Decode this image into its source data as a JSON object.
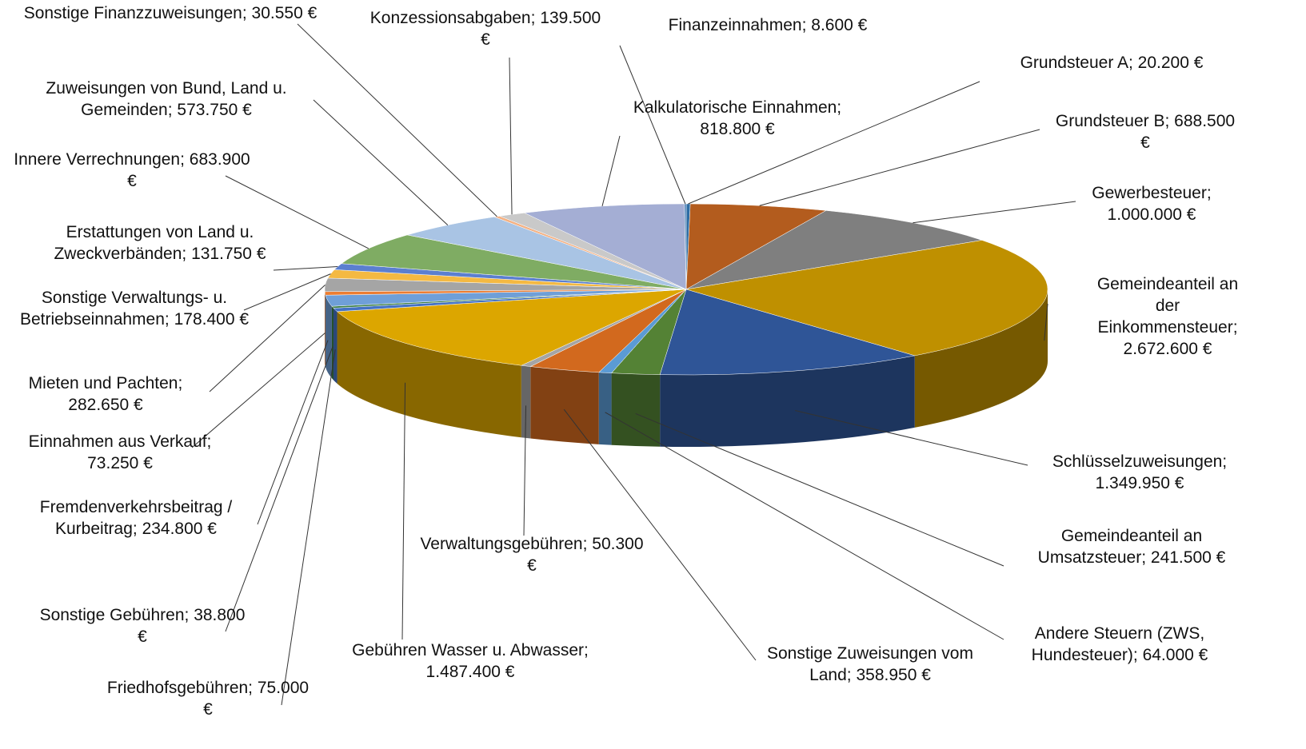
{
  "chart_data": {
    "type": "pie",
    "categories": [
      "Grundsteuer A;",
      "Grundsteuer B;",
      "Gewerbesteuer;",
      "Gemeindeanteil an der Einkommensteuer;",
      "Schlüsselzuweisungen;",
      "Gemeindeanteil an Umsatzsteuer;",
      "Andere Steuern (ZWS, Hundesteuer);",
      "Sonstige Zuweisungen vom Land;",
      "Verwaltungsgebühren;",
      "Gebühren Wasser u. Abwasser;",
      "Friedhofsgebühren;",
      "Sonstige Gebühren;",
      "Fremdenverkehrsbeitrag / Kurbeitrag;",
      "Einnahmen aus Verkauf;",
      "Mieten und Pachten;",
      "Sonstige Verwaltungs- u. Betriebseinnahmen;",
      "Erstattungen von Land u. Zweckverbänden;",
      "Innere Verrechnungen;",
      "Zuweisungen von Bund, Land u. Gemeinden;",
      "Sonstige Finanzzuweisungen;",
      "Konzessionsabgaben;",
      "Kalkulatorische Einnahmen;",
      "Finanzeinnahmen;"
    ],
    "values": [
      20200,
      688500,
      1000000,
      2672600,
      1349950,
      241500,
      64000,
      358950,
      50300,
      1487400,
      75000,
      38800,
      234800,
      73250,
      282650,
      178400,
      131750,
      683900,
      573750,
      30550,
      139500,
      818800,
      8600
    ],
    "value_labels": [
      "20.200 €",
      "688.500 €",
      "1.000.000 €",
      "2.672.600 €",
      "1.349.950 €",
      "241.500 €",
      "64.000 €",
      "358.950 €",
      "50.300 €",
      "1.487.400 €",
      "75.000 €",
      "38.800 €",
      "234.800 €",
      "73.250 €",
      "282.650 €",
      "178.400 €",
      "131.750 €",
      "683.900 €",
      "573.750 €",
      "30.550 €",
      "139.500 €",
      "818.800 €",
      "8.600 €"
    ],
    "colors": [
      "#2e6da4",
      "#b35c1e",
      "#7f7f7f",
      "#bf9000",
      "#2f5597",
      "#548235",
      "#5b9bd5",
      "#d2691e",
      "#a5a5a5",
      "#dca600",
      "#4472c4",
      "#3a7d44",
      "#6f9fd8",
      "#ed7d31",
      "#a5a5a5",
      "#f4b942",
      "#5b7fd0",
      "#7fac63",
      "#a9c4e4",
      "#f4b183",
      "#c9c9c9",
      "#a4aed4",
      "#4a7fb5"
    ]
  }
}
